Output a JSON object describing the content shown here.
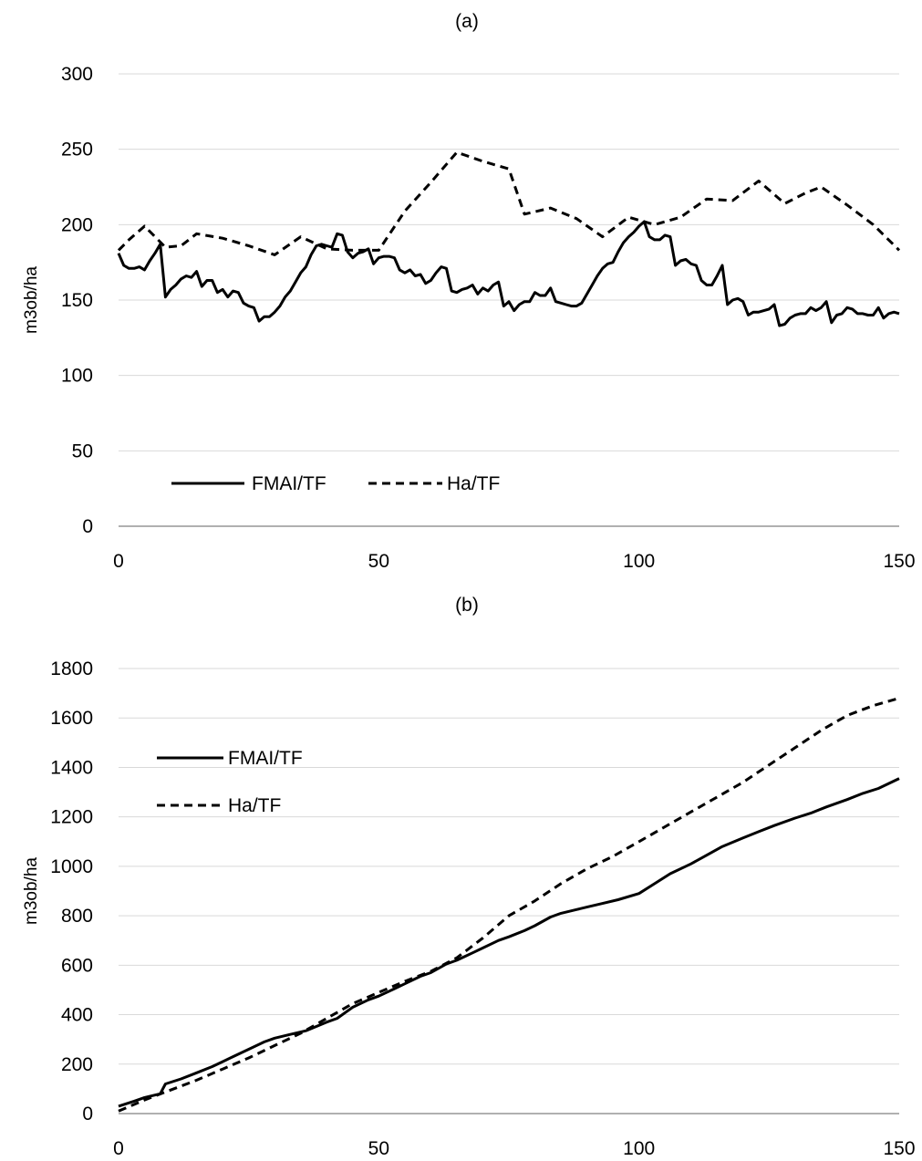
{
  "chart_data": [
    {
      "type": "line",
      "title": "(a)",
      "xlabel": "",
      "ylabel": "m3ob/ha",
      "xlim": [
        0,
        150
      ],
      "ylim": [
        0,
        300
      ],
      "xticks": [
        0,
        50,
        100,
        150
      ],
      "yticks": [
        0,
        50,
        100,
        150,
        200,
        250,
        300
      ],
      "grid": "horizontal",
      "legend": "bottom-left",
      "series": [
        {
          "name": "FMAI/TF",
          "style": "solid",
          "color": "#000000",
          "points": [
            [
              0,
              181
            ],
            [
              1,
              173
            ],
            [
              2,
              171
            ],
            [
              3,
              171
            ],
            [
              4,
              172
            ],
            [
              5,
              170
            ],
            [
              6,
              176
            ],
            [
              7,
              181
            ],
            [
              8,
              187
            ],
            [
              9,
              152
            ],
            [
              10,
              157
            ],
            [
              11,
              160
            ],
            [
              12,
              164
            ],
            [
              13,
              166
            ],
            [
              14,
              165
            ],
            [
              15,
              169
            ],
            [
              16,
              159
            ],
            [
              17,
              163
            ],
            [
              18,
              163
            ],
            [
              19,
              155
            ],
            [
              20,
              157
            ],
            [
              21,
              152
            ],
            [
              22,
              156
            ],
            [
              23,
              155
            ],
            [
              24,
              148
            ],
            [
              25,
              146
            ],
            [
              26,
              145
            ],
            [
              27,
              136
            ],
            [
              28,
              139
            ],
            [
              29,
              139
            ],
            [
              30,
              142
            ],
            [
              31,
              146
            ],
            [
              32,
              152
            ],
            [
              33,
              156
            ],
            [
              34,
              162
            ],
            [
              35,
              168
            ],
            [
              36,
              172
            ],
            [
              37,
              180
            ],
            [
              38,
              186
            ],
            [
              39,
              187
            ],
            [
              40,
              186
            ],
            [
              41,
              185
            ],
            [
              42,
              194
            ],
            [
              43,
              193
            ],
            [
              44,
              182
            ],
            [
              45,
              178
            ],
            [
              46,
              181
            ],
            [
              47,
              182
            ],
            [
              48,
              184
            ],
            [
              49,
              174
            ],
            [
              50,
              178
            ],
            [
              51,
              179
            ],
            [
              52,
              179
            ],
            [
              53,
              178
            ],
            [
              54,
              170
            ],
            [
              55,
              168
            ],
            [
              56,
              170
            ],
            [
              57,
              166
            ],
            [
              58,
              167
            ],
            [
              59,
              161
            ],
            [
              60,
              163
            ],
            [
              61,
              168
            ],
            [
              62,
              172
            ],
            [
              63,
              171
            ],
            [
              64,
              156
            ],
            [
              65,
              155
            ],
            [
              66,
              157
            ],
            [
              67,
              158
            ],
            [
              68,
              160
            ],
            [
              69,
              154
            ],
            [
              70,
              158
            ],
            [
              71,
              156
            ],
            [
              72,
              160
            ],
            [
              73,
              162
            ],
            [
              74,
              146
            ],
            [
              75,
              149
            ],
            [
              76,
              143
            ],
            [
              77,
              147
            ],
            [
              78,
              149
            ],
            [
              79,
              149
            ],
            [
              80,
              155
            ],
            [
              81,
              153
            ],
            [
              82,
              153
            ],
            [
              83,
              158
            ],
            [
              84,
              149
            ],
            [
              85,
              148
            ],
            [
              86,
              147
            ],
            [
              87,
              146
            ],
            [
              88,
              146
            ],
            [
              89,
              148
            ],
            [
              90,
              154
            ],
            [
              91,
              160
            ],
            [
              92,
              166
            ],
            [
              93,
              171
            ],
            [
              94,
              174
            ],
            [
              95,
              175
            ],
            [
              96,
              182
            ],
            [
              97,
              188
            ],
            [
              98,
              192
            ],
            [
              99,
              195
            ],
            [
              100,
              199
            ],
            [
              101,
              202
            ],
            [
              102,
              192
            ],
            [
              103,
              190
            ],
            [
              104,
              190
            ],
            [
              105,
              193
            ],
            [
              106,
              192
            ],
            [
              107,
              173
            ],
            [
              108,
              176
            ],
            [
              109,
              177
            ],
            [
              110,
              174
            ],
            [
              111,
              173
            ],
            [
              112,
              163
            ],
            [
              113,
              160
            ],
            [
              114,
              160
            ],
            [
              115,
              166
            ],
            [
              116,
              173
            ],
            [
              117,
              147
            ],
            [
              118,
              150
            ],
            [
              119,
              151
            ],
            [
              120,
              149
            ],
            [
              121,
              140
            ],
            [
              122,
              142
            ],
            [
              123,
              142
            ],
            [
              124,
              143
            ],
            [
              125,
              144
            ],
            [
              126,
              147
            ],
            [
              127,
              133
            ],
            [
              128,
              134
            ],
            [
              129,
              138
            ],
            [
              130,
              140
            ],
            [
              131,
              141
            ],
            [
              132,
              141
            ],
            [
              133,
              145
            ],
            [
              134,
              143
            ],
            [
              135,
              145
            ],
            [
              136,
              149
            ],
            [
              137,
              135
            ],
            [
              138,
              140
            ],
            [
              139,
              141
            ],
            [
              140,
              145
            ],
            [
              141,
              144
            ],
            [
              142,
              141
            ],
            [
              143,
              141
            ],
            [
              144,
              140
            ],
            [
              145,
              140
            ],
            [
              146,
              145
            ],
            [
              147,
              138
            ],
            [
              148,
              141
            ],
            [
              149,
              142
            ],
            [
              150,
              141
            ]
          ]
        },
        {
          "name": "Ha/TF",
          "style": "dashed",
          "color": "#000000",
          "points": [
            [
              0,
              183
            ],
            [
              2,
              190
            ],
            [
              5,
              199
            ],
            [
              9,
              185
            ],
            [
              12,
              186
            ],
            [
              15,
              194
            ],
            [
              20,
              191
            ],
            [
              25,
              186
            ],
            [
              30,
              180
            ],
            [
              35,
              192
            ],
            [
              40,
              184
            ],
            [
              45,
              183
            ],
            [
              50,
              183
            ],
            [
              55,
              209
            ],
            [
              60,
              228
            ],
            [
              65,
              248
            ],
            [
              70,
              242
            ],
            [
              75,
              237
            ],
            [
              78,
              207
            ],
            [
              83,
              211
            ],
            [
              88,
              204
            ],
            [
              93,
              192
            ],
            [
              98,
              205
            ],
            [
              103,
              200
            ],
            [
              108,
              205
            ],
            [
              113,
              217
            ],
            [
              118,
              216
            ],
            [
              123,
              229
            ],
            [
              128,
              214
            ],
            [
              132,
              221
            ],
            [
              135,
              225
            ],
            [
              140,
              213
            ],
            [
              145,
              200
            ],
            [
              150,
              183
            ]
          ]
        }
      ]
    },
    {
      "type": "line",
      "title": "(b)",
      "xlabel": "",
      "ylabel": "m3ob/ha",
      "xlim": [
        0,
        150
      ],
      "ylim": [
        0,
        1800
      ],
      "xticks": [
        0,
        50,
        100,
        150
      ],
      "yticks": [
        0,
        200,
        400,
        600,
        800,
        1000,
        1200,
        1400,
        1600,
        1800
      ],
      "grid": "horizontal",
      "legend": "top-left",
      "series": [
        {
          "name": "FMAI/TF",
          "style": "solid",
          "color": "#000000",
          "points": [
            [
              0,
              30
            ],
            [
              3,
              50
            ],
            [
              5,
              65
            ],
            [
              8,
              80
            ],
            [
              9,
              120
            ],
            [
              12,
              140
            ],
            [
              15,
              165
            ],
            [
              18,
              190
            ],
            [
              20,
              210
            ],
            [
              22,
              230
            ],
            [
              25,
              260
            ],
            [
              28,
              290
            ],
            [
              30,
              305
            ],
            [
              33,
              320
            ],
            [
              36,
              335
            ],
            [
              40,
              370
            ],
            [
              42,
              385
            ],
            [
              45,
              430
            ],
            [
              48,
              460
            ],
            [
              50,
              475
            ],
            [
              53,
              505
            ],
            [
              55,
              525
            ],
            [
              58,
              555
            ],
            [
              60,
              570
            ],
            [
              63,
              605
            ],
            [
              65,
              620
            ],
            [
              68,
              650
            ],
            [
              70,
              670
            ],
            [
              73,
              700
            ],
            [
              75,
              715
            ],
            [
              78,
              740
            ],
            [
              80,
              760
            ],
            [
              83,
              795
            ],
            [
              85,
              810
            ],
            [
              88,
              825
            ],
            [
              90,
              835
            ],
            [
              93,
              850
            ],
            [
              96,
              865
            ],
            [
              100,
              890
            ],
            [
              103,
              930
            ],
            [
              106,
              970
            ],
            [
              110,
              1010
            ],
            [
              113,
              1045
            ],
            [
              116,
              1080
            ],
            [
              120,
              1115
            ],
            [
              123,
              1140
            ],
            [
              126,
              1165
            ],
            [
              130,
              1195
            ],
            [
              133,
              1215
            ],
            [
              136,
              1240
            ],
            [
              140,
              1270
            ],
            [
              143,
              1295
            ],
            [
              146,
              1315
            ],
            [
              150,
              1355
            ]
          ]
        },
        {
          "name": "Ha/TF",
          "style": "dashed",
          "color": "#000000",
          "points": [
            [
              0,
              10
            ],
            [
              5,
              55
            ],
            [
              10,
              95
            ],
            [
              15,
              135
            ],
            [
              20,
              180
            ],
            [
              25,
              225
            ],
            [
              30,
              275
            ],
            [
              35,
              325
            ],
            [
              40,
              385
            ],
            [
              45,
              445
            ],
            [
              50,
              490
            ],
            [
              55,
              535
            ],
            [
              60,
              575
            ],
            [
              65,
              630
            ],
            [
              70,
              710
            ],
            [
              75,
              800
            ],
            [
              80,
              860
            ],
            [
              85,
              930
            ],
            [
              90,
              990
            ],
            [
              95,
              1040
            ],
            [
              100,
              1100
            ],
            [
              105,
              1160
            ],
            [
              110,
              1220
            ],
            [
              115,
              1280
            ],
            [
              120,
              1340
            ],
            [
              125,
              1410
            ],
            [
              130,
              1480
            ],
            [
              135,
              1550
            ],
            [
              140,
              1610
            ],
            [
              145,
              1650
            ],
            [
              150,
              1680
            ]
          ]
        }
      ]
    }
  ]
}
